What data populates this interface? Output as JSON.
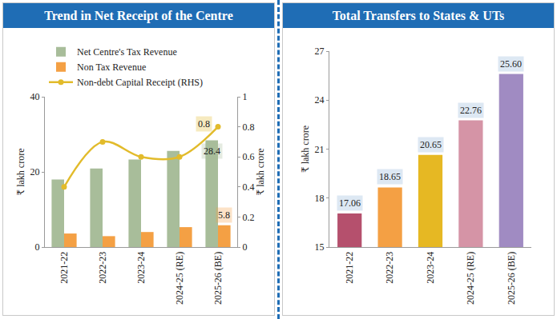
{
  "chart_data": [
    {
      "type": "bar",
      "title": "Trend in Net Receipt of the Centre",
      "categories": [
        "2021-22",
        "2022-23",
        "2023-24",
        "2024-25 (RE)",
        "2025-26 (BE)"
      ],
      "ylabel": "₹ lakh crore",
      "y2label": "₹ lakh crore",
      "ylim": [
        0,
        40
      ],
      "yticks": [
        0,
        20,
        40
      ],
      "y2lim": [
        0,
        1
      ],
      "y2ticks": [
        0,
        0.2,
        0.4,
        0.6,
        0.8,
        1
      ],
      "grid": false,
      "legend": "top left",
      "data_labels": true,
      "series": [
        {
          "name": "Net Centre's Tax Revenue",
          "type": "bar",
          "color": "#a8bd9a",
          "values": [
            18.0,
            20.9,
            23.3,
            25.6,
            28.4
          ],
          "value_labels": [
            null,
            null,
            null,
            null,
            "28.4"
          ]
        },
        {
          "name": "Non Tax Revenue",
          "type": "bar",
          "color": "#f4a044",
          "values": [
            3.6,
            2.9,
            4.0,
            5.3,
            5.8
          ],
          "value_labels": [
            null,
            null,
            null,
            null,
            "5.8"
          ]
        },
        {
          "name": "Non-debt Capital Receipt (RHS)",
          "type": "line",
          "axis": "y2",
          "color": "#e2bb2b",
          "marker": "circle",
          "line_style": "solid",
          "values": [
            0.4,
            0.7,
            0.6,
            0.6,
            0.8
          ],
          "value_labels": [
            null,
            null,
            null,
            null,
            "0.8"
          ]
        }
      ]
    },
    {
      "type": "bar",
      "title": "Total Transfers to States & UTs",
      "categories": [
        "2021-22",
        "2022-23",
        "2023-24",
        "2024-25 (RE)",
        "2025-26 (BE)"
      ],
      "ylabel": "₹ lakh crore",
      "ylim": [
        15,
        27
      ],
      "yticks": [
        15,
        18,
        21,
        24,
        27
      ],
      "grid": false,
      "data_labels": true,
      "values": [
        17.06,
        18.65,
        20.65,
        22.76,
        25.6
      ],
      "value_labels": [
        "17.06",
        "18.65",
        "20.65",
        "22.76",
        "25.60"
      ],
      "colors": [
        "#b5506d",
        "#f4a044",
        "#e6b823",
        "#d594a6",
        "#a08bc2"
      ]
    }
  ]
}
